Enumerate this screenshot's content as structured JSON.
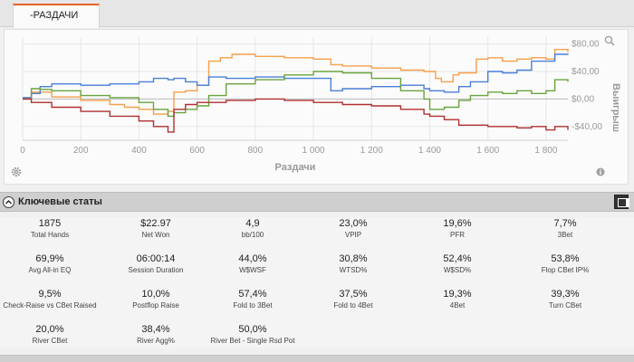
{
  "tab": {
    "label": "-РАЗДАЧИ"
  },
  "chart_data": {
    "type": "line",
    "xlabel": "Раздачи",
    "ylabel": "Выигрыш",
    "xlim": [
      0,
      1875
    ],
    "ylim": [
      -60,
      90
    ],
    "x_ticks": [
      0,
      200,
      400,
      600,
      800,
      1000,
      1200,
      1400,
      1600,
      1800
    ],
    "x_tick_labels": [
      "0",
      "200",
      "400",
      "600",
      "800",
      "1 000",
      "1 200",
      "1 400",
      "1 600",
      "1 800"
    ],
    "y_ticks": [
      80,
      40,
      0,
      -40
    ],
    "y_tick_labels": [
      "$80,00",
      "$40,00",
      "$0,00",
      "-$40,00"
    ],
    "grid": true,
    "series": [
      {
        "color": "#f5a04a",
        "x": [
          0,
          30,
          100,
          200,
          300,
          350,
          400,
          450,
          500,
          520,
          560,
          600,
          640,
          680,
          720,
          800,
          900,
          1000,
          1060,
          1100,
          1200,
          1300,
          1380,
          1420,
          1440,
          1480,
          1500,
          1560,
          1600,
          1650,
          1700,
          1750,
          1800,
          1830,
          1875
        ],
        "y": [
          2,
          10,
          3,
          -2,
          -8,
          -12,
          -15,
          -22,
          -18,
          10,
          12,
          20,
          55,
          60,
          65,
          62,
          60,
          58,
          50,
          48,
          45,
          42,
          40,
          30,
          25,
          35,
          38,
          58,
          60,
          55,
          58,
          60,
          58,
          72,
          68
        ]
      },
      {
        "color": "#4a7fd8",
        "x": [
          0,
          30,
          60,
          100,
          200,
          300,
          400,
          450,
          500,
          520,
          560,
          600,
          640,
          700,
          800,
          900,
          1000,
          1060,
          1100,
          1200,
          1300,
          1380,
          1400,
          1450,
          1500,
          1540,
          1600,
          1650,
          1700,
          1750,
          1800,
          1830,
          1875
        ],
        "y": [
          2,
          8,
          18,
          22,
          20,
          22,
          25,
          30,
          28,
          30,
          25,
          20,
          32,
          30,
          32,
          30,
          30,
          12,
          15,
          18,
          20,
          15,
          12,
          10,
          18,
          25,
          40,
          38,
          42,
          55,
          55,
          65,
          66
        ]
      },
      {
        "color": "#6aa33f",
        "x": [
          0,
          30,
          60,
          100,
          200,
          300,
          400,
          450,
          500,
          520,
          560,
          600,
          640,
          700,
          800,
          900,
          1000,
          1060,
          1100,
          1200,
          1300,
          1380,
          1400,
          1450,
          1500,
          1540,
          1600,
          1650,
          1700,
          1750,
          1800,
          1830,
          1875
        ],
        "y": [
          0,
          15,
          14,
          12,
          5,
          2,
          -5,
          -15,
          -25,
          -20,
          -15,
          -10,
          5,
          22,
          28,
          35,
          40,
          40,
          38,
          30,
          12,
          0,
          -15,
          -12,
          -2,
          5,
          10,
          8,
          12,
          8,
          12,
          28,
          25
        ]
      },
      {
        "color": "#b03030",
        "x": [
          0,
          30,
          100,
          200,
          300,
          400,
          450,
          500,
          520,
          560,
          600,
          700,
          800,
          900,
          1000,
          1100,
          1200,
          1300,
          1380,
          1400,
          1450,
          1500,
          1600,
          1700,
          1750,
          1800,
          1830,
          1875
        ],
        "y": [
          0,
          -5,
          -12,
          -18,
          -25,
          -32,
          -40,
          -48,
          -15,
          -8,
          -5,
          -2,
          0,
          -2,
          -5,
          -8,
          -10,
          -15,
          -22,
          -25,
          -30,
          -38,
          -40,
          -42,
          -40,
          -45,
          -40,
          -45
        ]
      }
    ]
  },
  "icons": {
    "zoom": "magnifier-icon",
    "settings": "gear-icon",
    "info": "info-icon",
    "collapse": "chevron-up-icon",
    "layout": "layout-toggle-icon"
  },
  "section": {
    "title": "Ключевые статы"
  },
  "stats": [
    [
      {
        "value": "1875",
        "label": "Total Hands"
      },
      {
        "value": "$22.97",
        "label": "Net Won"
      },
      {
        "value": "4,9",
        "label": "bb/100"
      },
      {
        "value": "23,0%",
        "label": "VPIP"
      },
      {
        "value": "19,6%",
        "label": "PFR"
      },
      {
        "value": "7,7%",
        "label": "3Bet"
      }
    ],
    [
      {
        "value": "69,9%",
        "label": "Avg All-in EQ"
      },
      {
        "value": "06:00:14",
        "label": "Session Duration"
      },
      {
        "value": "44,0%",
        "label": "W$WSF"
      },
      {
        "value": "30,8%",
        "label": "WTSD%"
      },
      {
        "value": "52,4%",
        "label": "W$SD%"
      },
      {
        "value": "53,8%",
        "label": "Flop CBet IP%"
      }
    ],
    [
      {
        "value": "9,5%",
        "label": "Check-Raise vs CBet Raised"
      },
      {
        "value": "10,0%",
        "label": "Postflop Raise"
      },
      {
        "value": "57,4%",
        "label": "Fold to 3Bet"
      },
      {
        "value": "37,5%",
        "label": "Fold to 4Bet"
      },
      {
        "value": "19,3%",
        "label": "4Bet"
      },
      {
        "value": "39,3%",
        "label": "Turn CBet"
      }
    ],
    [
      {
        "value": "20,0%",
        "label": "River CBet"
      },
      {
        "value": "38,4%",
        "label": "River Agg%"
      },
      {
        "value": "50,0%",
        "label": "River Bet - Single Rsd Pot"
      }
    ]
  ]
}
